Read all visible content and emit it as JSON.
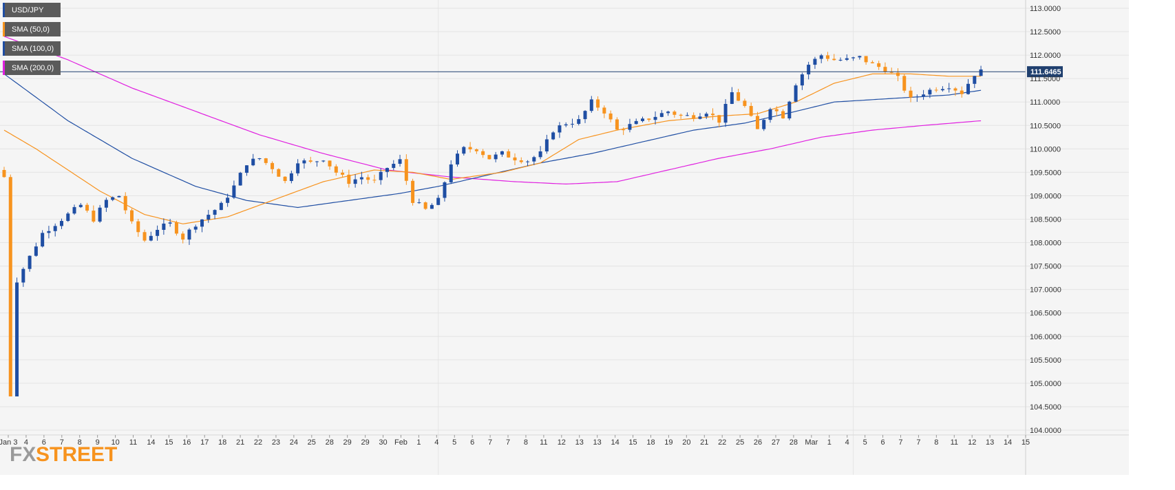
{
  "chart_data": {
    "type": "candlestick",
    "symbol": "USD/JPY",
    "legend": [
      {
        "label": "USD/JPY",
        "color": "#1f4ea3"
      },
      {
        "label": "SMA (50,0)",
        "color": "#f7931e"
      },
      {
        "label": "SMA (100,0)",
        "color": "#1f4ea3"
      },
      {
        "label": "SMA (200,0)",
        "color": "#e020e0"
      }
    ],
    "y_ticks": [
      "113.0000",
      "112.5000",
      "112.0000",
      "111.5000",
      "111.0000",
      "110.5000",
      "110.0000",
      "109.5000",
      "109.0000",
      "108.5000",
      "108.0000",
      "107.5000",
      "107.0000",
      "106.5000",
      "106.0000",
      "105.5000",
      "105.0000",
      "104.5000",
      "104.0000"
    ],
    "ylim": [
      104.0,
      113.0
    ],
    "x_labels": [
      "Jan 3",
      "4",
      "6",
      "7",
      "8",
      "9",
      "10",
      "11",
      "14",
      "15",
      "16",
      "17",
      "18",
      "21",
      "22",
      "23",
      "24",
      "25",
      "28",
      "29",
      "29",
      "30",
      "Feb",
      "1",
      "4",
      "5",
      "6",
      "7",
      "7",
      "8",
      "11",
      "12",
      "13",
      "13",
      "14",
      "15",
      "18",
      "19",
      "20",
      "21",
      "22",
      "25",
      "26",
      "27",
      "28",
      "Mar",
      "1",
      "4",
      "5",
      "6",
      "7",
      "7",
      "8",
      "11",
      "12",
      "13",
      "14",
      "15"
    ],
    "xlim": [
      0,
      160
    ],
    "last_price": "111.6465",
    "last_price_value": 111.6465,
    "colors": {
      "up": "#1f4ea3",
      "down": "#f7931e",
      "sma50": "#f7931e",
      "sma100": "#1f4ea3",
      "sma200": "#e020e0",
      "price_line": "#1f3f6e",
      "grid": "#e4e4e4",
      "background": "#f5f5f5"
    },
    "key_points": [
      [
        0,
        109.4
      ],
      [
        1,
        104.75
      ],
      [
        2,
        107.2
      ],
      [
        4,
        107.7
      ],
      [
        6,
        108.2
      ],
      [
        8,
        108.4
      ],
      [
        10,
        108.6
      ],
      [
        12,
        108.8
      ],
      [
        14,
        108.5
      ],
      [
        16,
        108.9
      ],
      [
        18,
        109.0
      ],
      [
        20,
        108.4
      ],
      [
        22,
        108.05
      ],
      [
        24,
        108.3
      ],
      [
        26,
        108.4
      ],
      [
        28,
        108.1
      ],
      [
        30,
        108.4
      ],
      [
        32,
        108.6
      ],
      [
        34,
        108.8
      ],
      [
        36,
        109.2
      ],
      [
        38,
        109.7
      ],
      [
        40,
        109.8
      ],
      [
        42,
        109.6
      ],
      [
        44,
        109.3
      ],
      [
        46,
        109.75
      ],
      [
        48,
        109.7
      ],
      [
        50,
        109.8
      ],
      [
        52,
        109.5
      ],
      [
        54,
        109.3
      ],
      [
        56,
        109.4
      ],
      [
        58,
        109.3
      ],
      [
        60,
        109.6
      ],
      [
        62,
        109.75
      ],
      [
        64,
        108.9
      ],
      [
        66,
        108.7
      ],
      [
        68,
        108.9
      ],
      [
        70,
        109.7
      ],
      [
        72,
        110.0
      ],
      [
        74,
        110.0
      ],
      [
        76,
        109.8
      ],
      [
        78,
        109.9
      ],
      [
        80,
        109.8
      ],
      [
        82,
        109.75
      ],
      [
        84,
        109.9
      ],
      [
        86,
        110.4
      ],
      [
        88,
        110.55
      ],
      [
        90,
        110.6
      ],
      [
        92,
        111.0
      ],
      [
        94,
        110.8
      ],
      [
        96,
        110.4
      ],
      [
        98,
        110.5
      ],
      [
        100,
        110.6
      ],
      [
        102,
        110.7
      ],
      [
        104,
        110.8
      ],
      [
        106,
        110.7
      ],
      [
        108,
        110.7
      ],
      [
        110,
        110.8
      ],
      [
        112,
        110.6
      ],
      [
        114,
        111.2
      ],
      [
        116,
        110.9
      ],
      [
        118,
        110.4
      ],
      [
        120,
        110.9
      ],
      [
        122,
        110.7
      ],
      [
        124,
        111.4
      ],
      [
        126,
        111.8
      ],
      [
        128,
        112.0
      ],
      [
        130,
        111.9
      ],
      [
        132,
        111.9
      ],
      [
        134,
        111.95
      ],
      [
        136,
        111.8
      ],
      [
        138,
        111.7
      ],
      [
        140,
        111.5
      ],
      [
        142,
        111.05
      ],
      [
        144,
        111.2
      ],
      [
        146,
        111.3
      ],
      [
        148,
        111.35
      ],
      [
        150,
        111.2
      ],
      [
        152,
        111.6
      ],
      [
        153,
        111.65
      ]
    ],
    "sma50": [
      [
        0,
        110.4
      ],
      [
        5,
        110.0
      ],
      [
        15,
        109.1
      ],
      [
        22,
        108.6
      ],
      [
        28,
        108.4
      ],
      [
        35,
        108.55
      ],
      [
        42,
        108.9
      ],
      [
        50,
        109.3
      ],
      [
        58,
        109.55
      ],
      [
        64,
        109.5
      ],
      [
        70,
        109.35
      ],
      [
        78,
        109.5
      ],
      [
        84,
        109.7
      ],
      [
        90,
        110.2
      ],
      [
        96,
        110.4
      ],
      [
        104,
        110.6
      ],
      [
        112,
        110.7
      ],
      [
        118,
        110.75
      ],
      [
        124,
        111.0
      ],
      [
        130,
        111.4
      ],
      [
        136,
        111.6
      ],
      [
        142,
        111.6
      ],
      [
        148,
        111.55
      ],
      [
        153,
        111.55
      ]
    ],
    "sma100": [
      [
        0,
        111.6
      ],
      [
        10,
        110.6
      ],
      [
        20,
        109.8
      ],
      [
        30,
        109.2
      ],
      [
        38,
        108.9
      ],
      [
        46,
        108.75
      ],
      [
        54,
        108.9
      ],
      [
        62,
        109.05
      ],
      [
        68,
        109.2
      ],
      [
        76,
        109.45
      ],
      [
        84,
        109.7
      ],
      [
        92,
        109.9
      ],
      [
        100,
        110.15
      ],
      [
        108,
        110.4
      ],
      [
        116,
        110.55
      ],
      [
        124,
        110.8
      ],
      [
        130,
        111.0
      ],
      [
        136,
        111.05
      ],
      [
        142,
        111.1
      ],
      [
        148,
        111.15
      ],
      [
        153,
        111.25
      ]
    ],
    "sma200": [
      [
        0,
        112.4
      ],
      [
        10,
        111.9
      ],
      [
        20,
        111.3
      ],
      [
        30,
        110.8
      ],
      [
        40,
        110.3
      ],
      [
        50,
        109.9
      ],
      [
        60,
        109.55
      ],
      [
        70,
        109.4
      ],
      [
        80,
        109.3
      ],
      [
        88,
        109.25
      ],
      [
        96,
        109.3
      ],
      [
        104,
        109.55
      ],
      [
        112,
        109.8
      ],
      [
        120,
        110.0
      ],
      [
        128,
        110.25
      ],
      [
        136,
        110.4
      ],
      [
        144,
        110.5
      ],
      [
        153,
        110.6
      ]
    ]
  },
  "branding": {
    "fx": "FX",
    "street": "STREET"
  }
}
